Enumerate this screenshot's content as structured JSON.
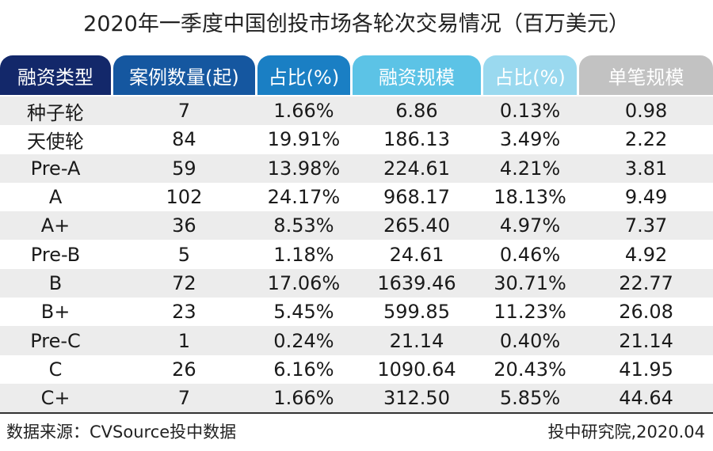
{
  "chart_data": {
    "type": "table",
    "title": "2020年一季度中国创投市场各轮次交易情况（百万美元）",
    "columns": [
      "融资类型",
      "案例数量(起)",
      "占比(%)",
      "融资规模",
      "占比(%)",
      "单笔规模"
    ],
    "rows": [
      [
        "种子轮",
        "7",
        "1.66%",
        "6.86",
        "0.13%",
        "0.98"
      ],
      [
        "天使轮",
        "84",
        "19.91%",
        "186.13",
        "3.49%",
        "2.22"
      ],
      [
        "Pre-A",
        "59",
        "13.98%",
        "224.61",
        "4.21%",
        "3.81"
      ],
      [
        "A",
        "102",
        "24.17%",
        "968.17",
        "18.13%",
        "9.49"
      ],
      [
        "A+",
        "36",
        "8.53%",
        "265.40",
        "4.97%",
        "7.37"
      ],
      [
        "Pre-B",
        "5",
        "1.18%",
        "24.61",
        "0.46%",
        "4.92"
      ],
      [
        "B",
        "72",
        "17.06%",
        "1639.46",
        "30.71%",
        "22.77"
      ],
      [
        "B+",
        "23",
        "5.45%",
        "599.85",
        "11.23%",
        "26.08"
      ],
      [
        "Pre-C",
        "1",
        "0.24%",
        "21.14",
        "0.40%",
        "21.14"
      ],
      [
        "C",
        "26",
        "6.16%",
        "1090.64",
        "20.43%",
        "41.95"
      ],
      [
        "C+",
        "7",
        "1.66%",
        "312.50",
        "5.85%",
        "44.64"
      ]
    ],
    "header_colors": [
      "#13286a",
      "#1557a0",
      "#1a7fc4",
      "#5cc3e6",
      "#9ad9ef",
      "#c2c2c2"
    ]
  },
  "footer": {
    "source": "数据来源：CVSource投中数据",
    "credit": "投中研究院,2020.04"
  }
}
